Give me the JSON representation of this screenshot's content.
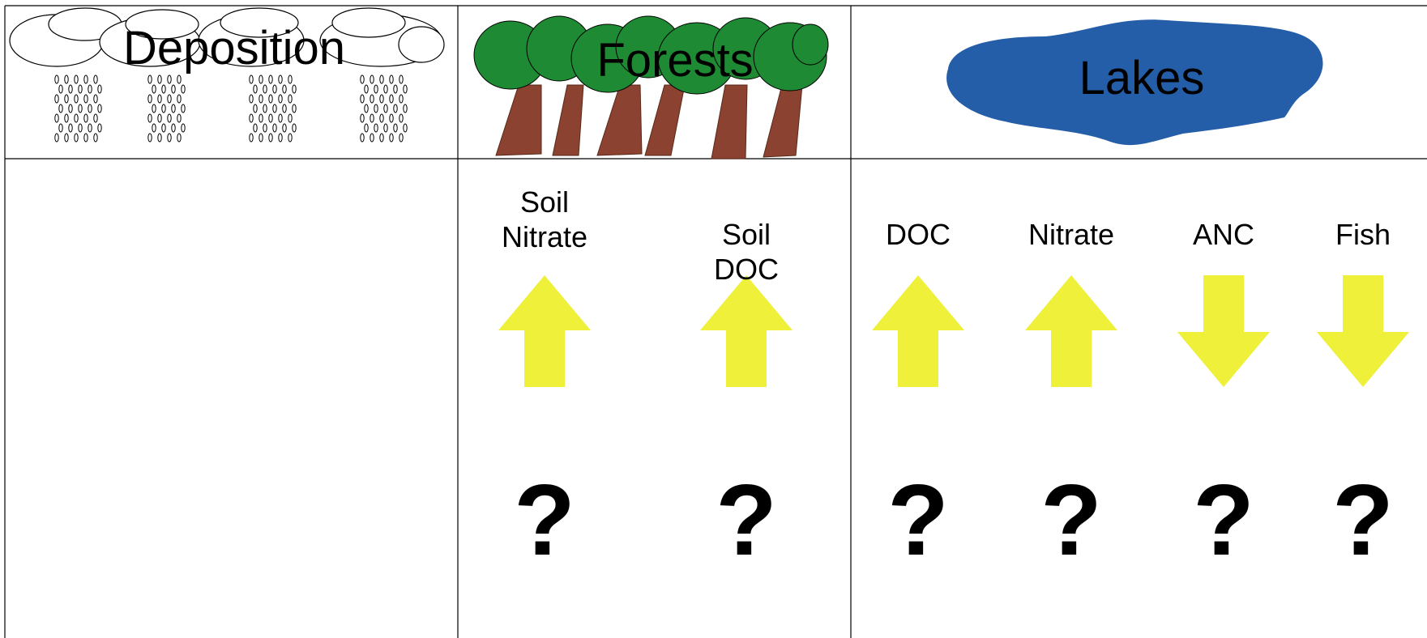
{
  "header": {
    "columns": [
      "Deposition",
      "Forests",
      "Lakes"
    ]
  },
  "indicators": [
    {
      "label": "Soil Nitrate",
      "status": "?"
    },
    {
      "label": "Soil DOC",
      "status": "?"
    },
    {
      "label": "DOC",
      "status": "?"
    },
    {
      "label": "Nitrate",
      "status": "?"
    },
    {
      "label": "ANC",
      "status": "?"
    },
    {
      "label": "Fish",
      "status": "?"
    }
  ]
}
